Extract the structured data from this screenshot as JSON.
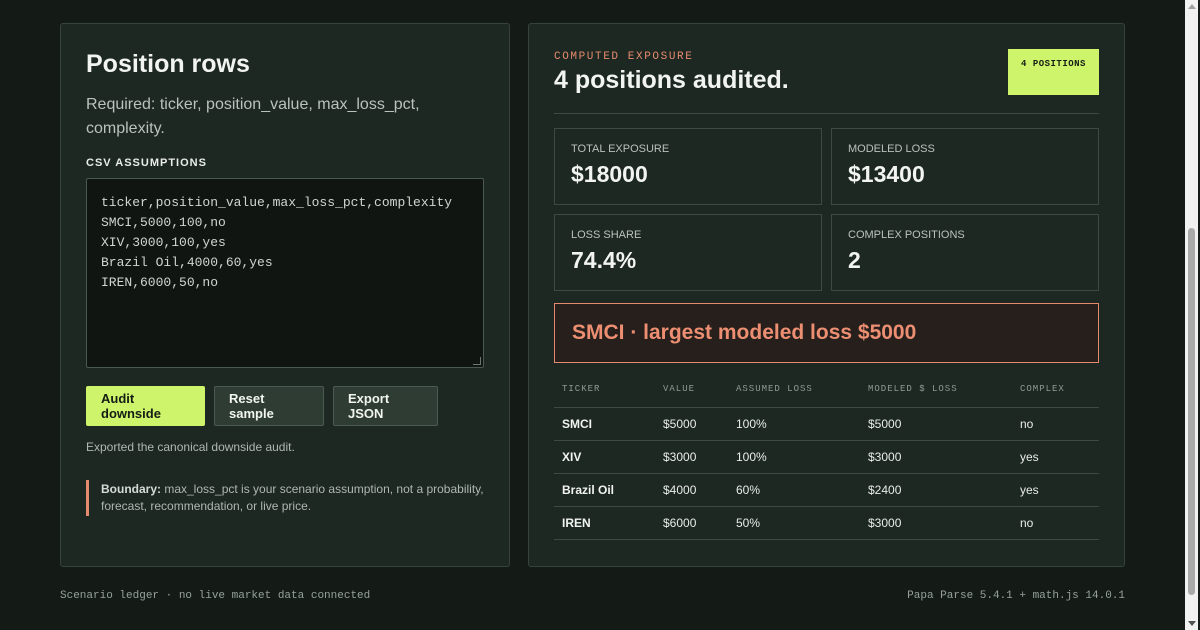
{
  "input_panel": {
    "title": "Position rows",
    "required_text": "Required: ticker, position_value, max_loss_pct, complexity.",
    "csv_label": "CSV ASSUMPTIONS",
    "csv_text": "ticker,position_value,max_loss_pct,complexity\nSMCI,5000,100,no\nXIV,3000,100,yes\nBrazil Oil,4000,60,yes\nIREN,6000,50,no",
    "buttons": {
      "audit": "Audit downside",
      "reset": "Reset sample",
      "export": "Export JSON"
    },
    "status": "Exported the canonical downside audit.",
    "boundary_label": "Boundary:",
    "boundary_text": " max_loss_pct is your scenario assumption, not a probability, forecast, recommendation, or live price."
  },
  "results_panel": {
    "eyebrow": "COMPUTED EXPOSURE",
    "title": "4 positions audited.",
    "badge": "4 POSITIONS",
    "metrics": [
      {
        "label": "TOTAL EXPOSURE",
        "value": "$18000"
      },
      {
        "label": "MODELED LOSS",
        "value": "$13400"
      },
      {
        "label": "LOSS SHARE",
        "value": "74.4%"
      },
      {
        "label": "COMPLEX POSITIONS",
        "value": "2"
      }
    ],
    "alert": "SMCI · largest modeled loss $5000",
    "table": {
      "headers": [
        "TICKER",
        "VALUE",
        "ASSUMED LOSS",
        "MODELED $ LOSS",
        "COMPLEX"
      ],
      "rows": [
        [
          "SMCI",
          "$5000",
          "100%",
          "$5000",
          "no"
        ],
        [
          "XIV",
          "$3000",
          "100%",
          "$3000",
          "yes"
        ],
        [
          "Brazil Oil",
          "$4000",
          "60%",
          "$2400",
          "yes"
        ],
        [
          "IREN",
          "$6000",
          "50%",
          "$3000",
          "no"
        ]
      ]
    }
  },
  "footer": {
    "left": "Scenario ledger · no live market data connected",
    "right": "Papa Parse 5.4.1 + math.js 14.0.1"
  },
  "colors": {
    "accent": "#cdf46a",
    "alert": "#e58a6e",
    "background": "#141b16"
  }
}
